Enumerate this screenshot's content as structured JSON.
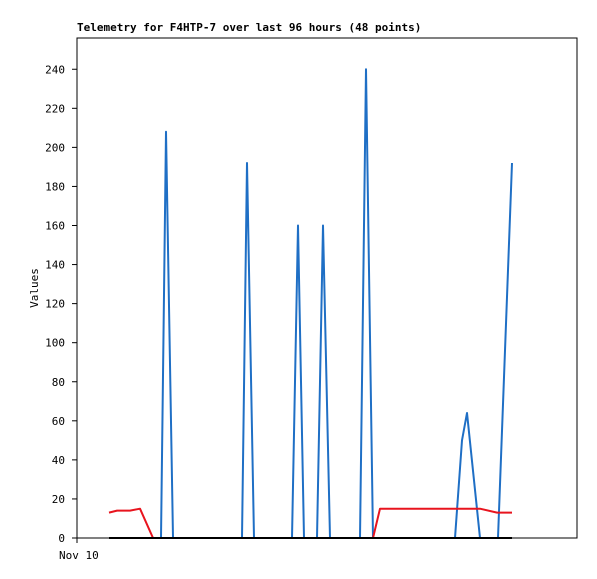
{
  "chart_data": {
    "type": "line",
    "title": "Telemetry for F4HTP-7 over last 96 hours (48 points)",
    "y_label": "Values",
    "xlim": [
      0,
      100
    ],
    "xticks": [
      {
        "value": 0,
        "label": "Nov 10"
      }
    ],
    "ylim": [
      0,
      256
    ],
    "yticks": [
      0,
      20,
      40,
      60,
      80,
      100,
      120,
      140,
      160,
      180,
      200,
      220,
      240
    ],
    "grid": false,
    "series": [
      {
        "color": "#1f6fc5",
        "x": [
          6.4,
          16.8,
          17.8,
          19.2,
          33,
          34,
          35.4,
          43,
          44.2,
          45.4,
          48,
          49.2,
          50.6,
          56.6,
          57.8,
          59.2,
          75.6,
          77,
          78,
          80.6,
          84.2,
          87
        ],
        "values": [
          0,
          0,
          208,
          0,
          0,
          192,
          0,
          0,
          160,
          0,
          0,
          160,
          0,
          0,
          240,
          0,
          0,
          50,
          64,
          0,
          0,
          192
        ]
      },
      {
        "color": "#e8141e",
        "x": [
          6.4,
          8,
          10.6,
          12.6,
          15.2,
          59.2,
          60.6,
          80.6,
          84,
          87
        ],
        "values": [
          13,
          14,
          14,
          15,
          0,
          0,
          15,
          15,
          13,
          13
        ]
      },
      {
        "color": "#000000",
        "x": [
          6.4,
          87
        ],
        "values": [
          0,
          0
        ]
      }
    ]
  }
}
